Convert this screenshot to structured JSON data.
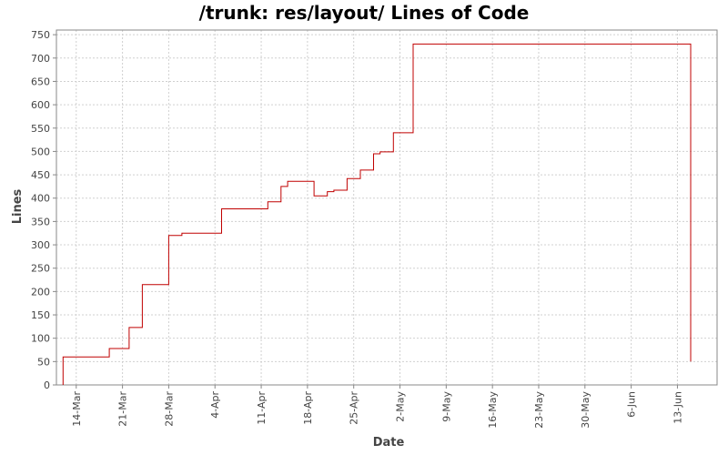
{
  "chart_data": {
    "type": "line",
    "title": "/trunk: res/layout/ Lines of Code",
    "xlabel": "Date",
    "ylabel": "Lines",
    "ylim": [
      0,
      760
    ],
    "xlim": [
      "2005-03-11",
      "2005-06-19"
    ],
    "y_ticks": [
      0,
      50,
      100,
      150,
      200,
      250,
      300,
      350,
      400,
      450,
      500,
      550,
      600,
      650,
      700,
      750
    ],
    "x_ticks": [
      {
        "date": "2005-03-14",
        "label": "14-Mar"
      },
      {
        "date": "2005-03-21",
        "label": "21-Mar"
      },
      {
        "date": "2005-03-28",
        "label": "28-Mar"
      },
      {
        "date": "2005-04-04",
        "label": "4-Apr"
      },
      {
        "date": "2005-04-11",
        "label": "11-Apr"
      },
      {
        "date": "2005-04-18",
        "label": "18-Apr"
      },
      {
        "date": "2005-04-25",
        "label": "25-Apr"
      },
      {
        "date": "2005-05-02",
        "label": "2-May"
      },
      {
        "date": "2005-05-09",
        "label": "9-May"
      },
      {
        "date": "2005-05-16",
        "label": "16-May"
      },
      {
        "date": "2005-05-23",
        "label": "23-May"
      },
      {
        "date": "2005-05-30",
        "label": "30-May"
      },
      {
        "date": "2005-06-06",
        "label": "6-Jun"
      },
      {
        "date": "2005-06-13",
        "label": "13-Jun"
      }
    ],
    "grid": true,
    "legend": "none",
    "series": [
      {
        "color": "#c00000",
        "points": [
          {
            "x": "2005-03-12",
            "y": 0
          },
          {
            "x": "2005-03-12",
            "y": 60
          },
          {
            "x": "2005-03-19",
            "y": 78
          },
          {
            "x": "2005-03-22",
            "y": 110
          },
          {
            "x": "2005-03-22",
            "y": 123
          },
          {
            "x": "2005-03-24",
            "y": 215
          },
          {
            "x": "2005-03-28",
            "y": 320
          },
          {
            "x": "2005-03-30",
            "y": 325
          },
          {
            "x": "2005-04-05",
            "y": 377
          },
          {
            "x": "2005-04-12",
            "y": 392
          },
          {
            "x": "2005-04-14",
            "y": 425
          },
          {
            "x": "2005-04-15",
            "y": 436
          },
          {
            "x": "2005-04-19",
            "y": 405
          },
          {
            "x": "2005-04-21",
            "y": 414
          },
          {
            "x": "2005-04-22",
            "y": 417
          },
          {
            "x": "2005-04-24",
            "y": 442
          },
          {
            "x": "2005-04-26",
            "y": 460
          },
          {
            "x": "2005-04-28",
            "y": 495
          },
          {
            "x": "2005-04-29",
            "y": 499
          },
          {
            "x": "2005-05-01",
            "y": 540
          },
          {
            "x": "2005-05-04",
            "y": 718
          },
          {
            "x": "2005-05-04",
            "y": 730
          },
          {
            "x": "2005-06-15",
            "y": 730
          },
          {
            "x": "2005-06-15",
            "y": 50
          }
        ]
      }
    ]
  }
}
